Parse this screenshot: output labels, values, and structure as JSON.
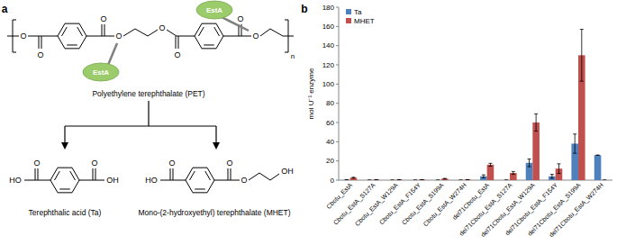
{
  "diagram": {
    "panel_label": "a",
    "polymer": "Polyethylene terephthalate (PET)",
    "enzyme": "EstA",
    "oxygen": "O",
    "hydroxyl_left": "HO",
    "hydroxyl_right": "OH",
    "repeat": "n",
    "products": [
      {
        "name": "Terephthalic acid (Ta)"
      },
      {
        "name": "Mono-(2-hydroxyethyl) terephthalate (MHET)"
      }
    ]
  },
  "chart_data": {
    "type": "bar",
    "panel_label": "b",
    "y_label": "mol U⁻¹ enzyme",
    "categories": [
      "Cbotu_EstA",
      "Cbotu_EstA_S127A",
      "Cbotu_EstA_W129A",
      "Cbotu_EstA_F154Y",
      "Cbotu_EstA_S199A",
      "Cbotu_EstA_W274H",
      "del71Cbotu_EstA",
      "del71Cbotu_EstA_S127A",
      "del71Cbotu_EstA_W129A",
      "del71Cbotu_EstA_F154Y",
      "del71Cbotu_EstA_S199A",
      "del71Cbotu_EstA_W274H"
    ],
    "series": [
      {
        "name": "Ta",
        "color": "#4f81bd",
        "values": [
          0.3,
          0,
          0,
          0,
          0,
          0,
          4,
          0,
          18,
          4,
          38,
          26
        ],
        "errors": [
          0,
          0,
          0,
          0,
          0,
          0,
          1.5,
          0,
          4,
          2,
          10,
          0
        ]
      },
      {
        "name": "MHET",
        "color": "#c0504d",
        "values": [
          2.5,
          0.5,
          0.5,
          0.5,
          1.5,
          0.5,
          16,
          7.5,
          60,
          12,
          130,
          0
        ],
        "errors": [
          0.5,
          0,
          0,
          0,
          0.3,
          0,
          1.5,
          1.5,
          9,
          5,
          27,
          0
        ]
      }
    ],
    "ylim": [
      0,
      180
    ],
    "yticks": [
      0,
      20,
      40,
      60,
      80,
      100,
      120,
      140,
      160,
      180
    ],
    "grid": false,
    "legend": "top-left"
  }
}
